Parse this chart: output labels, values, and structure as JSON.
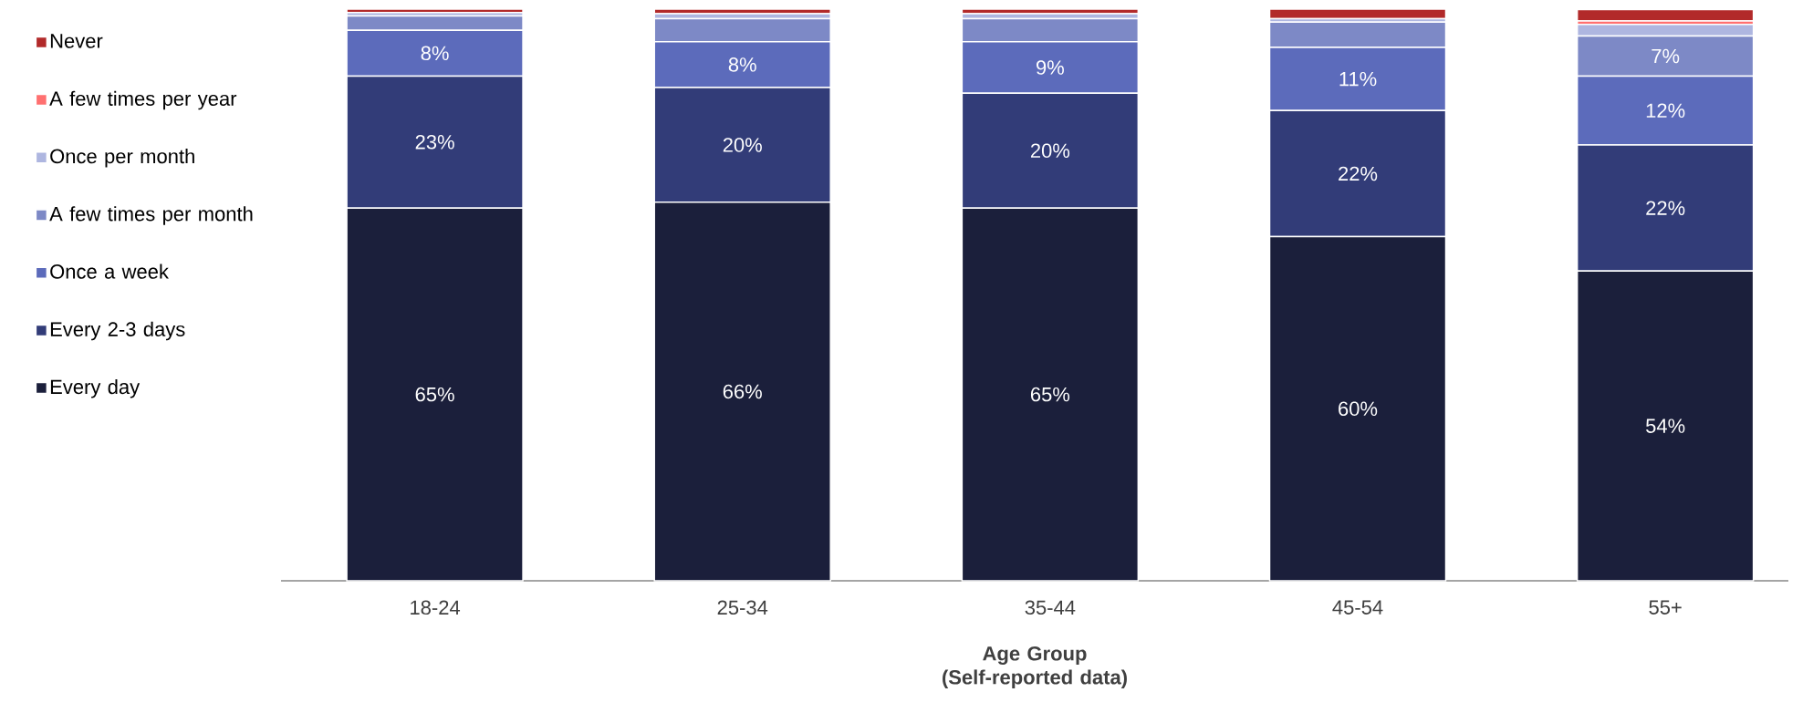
{
  "chart_data": {
    "type": "bar",
    "stacked": true,
    "xlabel": "Age Group (Self-reported data)",
    "categories": [
      "18-24",
      "25-34",
      "35-44",
      "45-54",
      "55+"
    ],
    "ylim": [
      0,
      100
    ],
    "legend": "left",
    "series": [
      {
        "name": "Every day",
        "color": "#1b1f3b",
        "values": [
          65,
          66,
          65,
          60,
          54
        ],
        "value_labels": [
          "65%",
          "66%",
          "65%",
          "60%",
          "54%"
        ]
      },
      {
        "name": "Every 2-3 days",
        "color": "#323c78",
        "values": [
          23,
          20,
          20,
          22,
          22
        ],
        "value_labels": [
          "23%",
          "20%",
          "20%",
          "22%",
          "22%"
        ]
      },
      {
        "name": "Once a week",
        "color": "#5c6bbb",
        "values": [
          8,
          8,
          9,
          11,
          12
        ],
        "value_labels": [
          "8%",
          "8%",
          "9%",
          "11%",
          "12%"
        ]
      },
      {
        "name": "A few times per month",
        "color": "#7d89c6",
        "values": [
          2.5,
          4,
          4,
          4.4,
          7
        ],
        "value_labels": [
          null,
          null,
          null,
          null,
          "7%"
        ]
      },
      {
        "name": "Once per month",
        "color": "#aeb6e0",
        "values": [
          0.6,
          0.9,
          0.9,
          0.6,
          2
        ]
      },
      {
        "name": "A few times per year",
        "color": "#ff7070",
        "values": [
          null,
          null,
          null,
          null,
          0.6
        ]
      },
      {
        "name": "Never",
        "color": "#b22a2a",
        "values": [
          0.6,
          0.8,
          0.8,
          1.7,
          2
        ]
      }
    ]
  }
}
